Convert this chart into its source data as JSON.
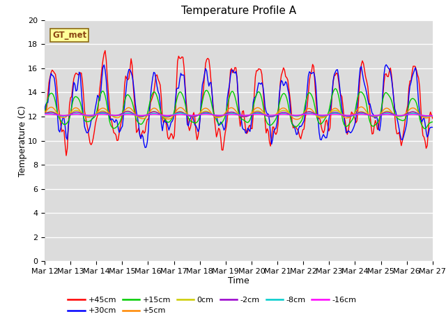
{
  "title": "Temperature Profile A",
  "xlabel": "Time",
  "ylabel": "Temperature (C)",
  "ylim": [
    0,
    20
  ],
  "yticks": [
    0,
    2,
    4,
    6,
    8,
    10,
    12,
    14,
    16,
    18,
    20
  ],
  "x_labels": [
    "Mar 12",
    "Mar 13",
    "Mar 14",
    "Mar 15",
    "Mar 16",
    "Mar 17",
    "Mar 18",
    "Mar 19",
    "Mar 20",
    "Mar 21",
    "Mar 22",
    "Mar 23",
    "Mar 24",
    "Mar 25",
    "Mar 26",
    "Mar 27"
  ],
  "annotation_text": "GT_met",
  "annotation_color": "#8B4513",
  "annotation_bg": "#FFFF99",
  "background_color": "#DCDCDC",
  "legend_entries": [
    "+45cm",
    "+30cm",
    "+15cm",
    "+5cm",
    "0cm",
    "-2cm",
    "-8cm",
    "-16cm"
  ],
  "legend_colors": [
    "#FF0000",
    "#0000FF",
    "#00CC00",
    "#FF8800",
    "#CCCC00",
    "#9900CC",
    "#00CCCC",
    "#FF00FF"
  ],
  "title_fontsize": 11,
  "axis_label_fontsize": 9,
  "tick_fontsize": 8
}
